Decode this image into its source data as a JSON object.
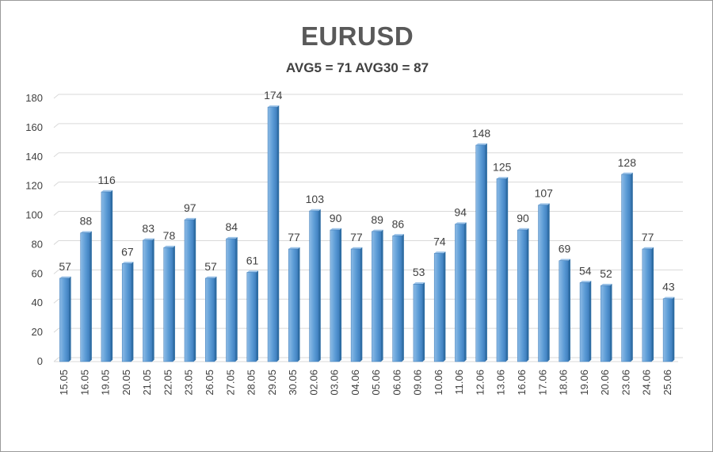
{
  "chart_data": {
    "type": "bar",
    "title": "EURUSD",
    "subtitle": "AVG5 = 71 AVG30 = 87",
    "categories": [
      "15.05",
      "16.05",
      "19.05",
      "20.05",
      "21.05",
      "22.05",
      "23.05",
      "26.05",
      "27.05",
      "28.05",
      "29.05",
      "30.05",
      "02.06",
      "03.06",
      "04.06",
      "05.06",
      "06.06",
      "09.06",
      "10.06",
      "11.06",
      "12.06",
      "13.06",
      "16.06",
      "17.06",
      "18.06",
      "19.06",
      "20.06",
      "23.06",
      "24.06",
      "25.06"
    ],
    "values": [
      57,
      88,
      116,
      67,
      83,
      78,
      97,
      57,
      84,
      61,
      174,
      77,
      103,
      90,
      77,
      89,
      86,
      53,
      74,
      94,
      148,
      125,
      90,
      107,
      69,
      54,
      52,
      128,
      77,
      43
    ],
    "ylim": [
      0,
      180
    ],
    "yticks": [
      0,
      20,
      40,
      60,
      80,
      100,
      120,
      140,
      160,
      180
    ],
    "grid": true,
    "xlabel": "",
    "ylabel": "",
    "colors": {
      "bar_front": "#5b9bd5",
      "bar_light": "#9cc3e8",
      "bar_dark": "#2e6da4",
      "grid": "#d9d9d9",
      "text": "#404040"
    }
  }
}
